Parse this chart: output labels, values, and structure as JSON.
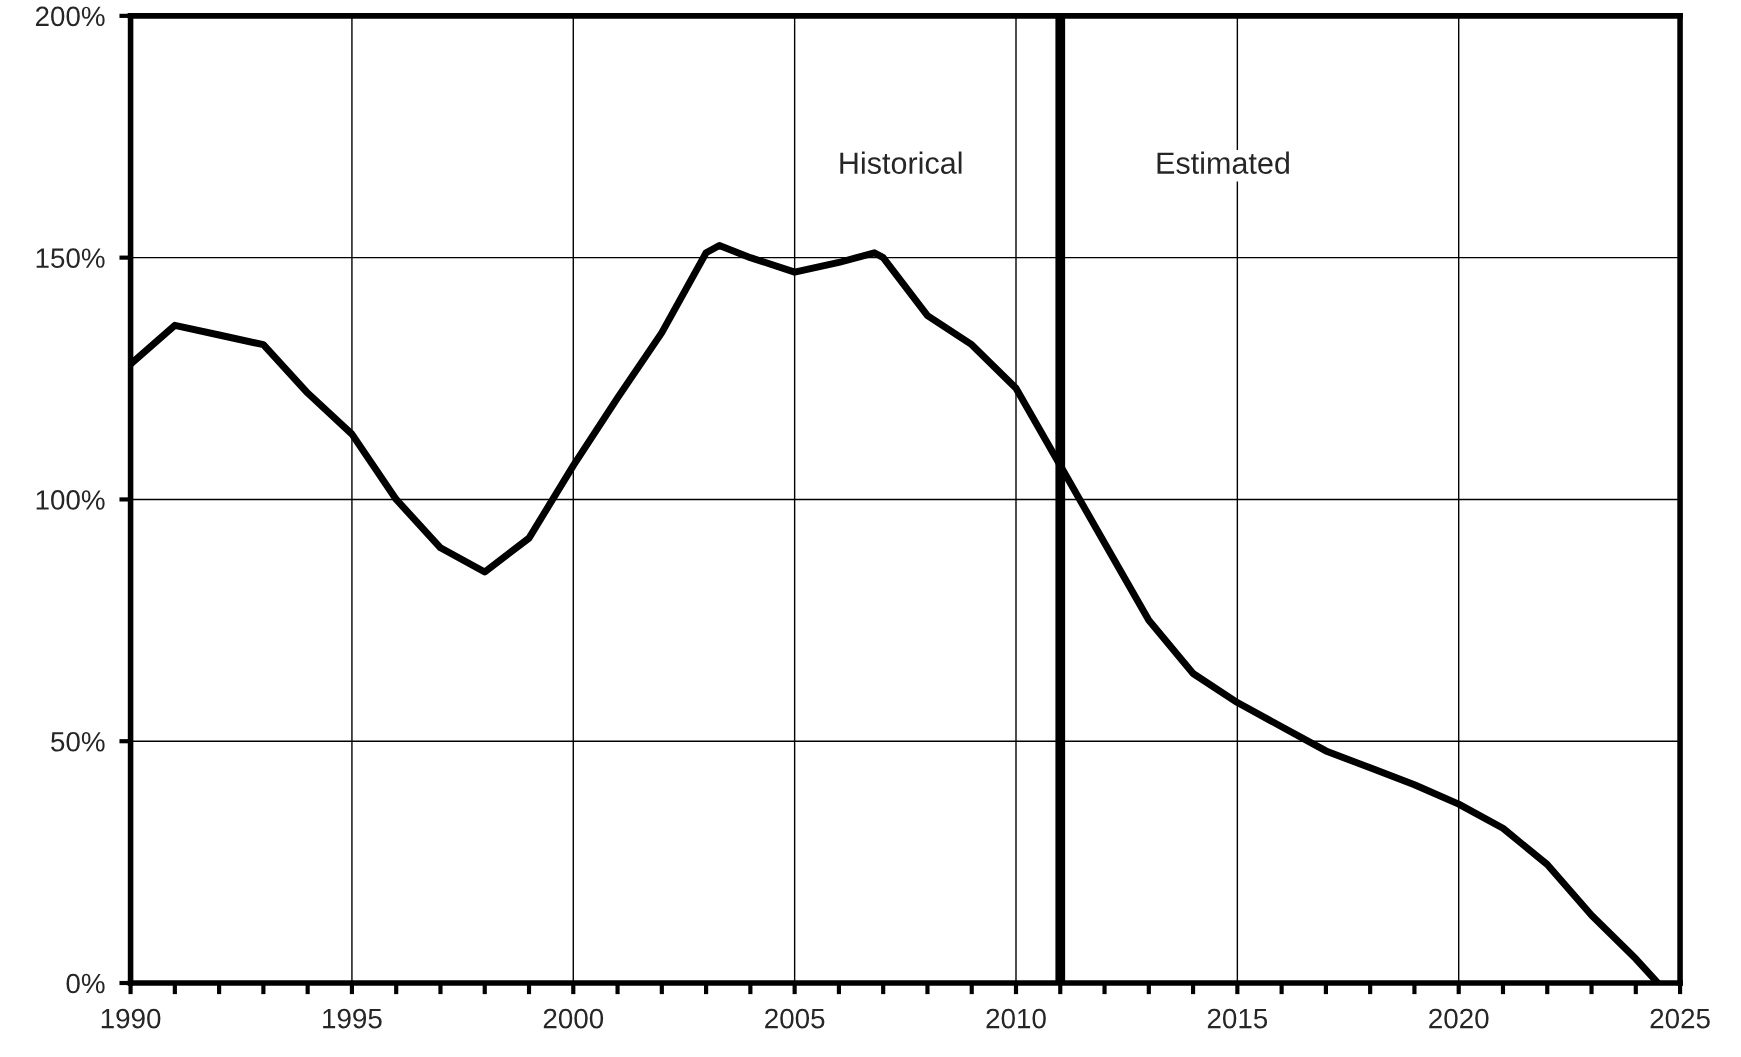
{
  "chart_data": {
    "type": "line",
    "x": [
      1990,
      1991,
      1992,
      1993,
      1994,
      1995,
      1996,
      1997,
      1998,
      1999,
      2000,
      2001,
      2002,
      2003,
      2003.3,
      2004,
      2005,
      2006,
      2006.8,
      2007,
      2008,
      2009,
      2010,
      2011,
      2012,
      2013,
      2014,
      2015,
      2016,
      2017,
      2018,
      2019,
      2020,
      2021,
      2022,
      2023,
      2024,
      2024.5
    ],
    "series": [
      {
        "color": "#000000",
        "values": [
          128,
          136,
          134,
          132,
          122,
          113.5,
          100,
          90,
          85,
          92,
          107,
          121,
          134.5,
          151,
          152.5,
          150,
          147,
          149,
          151,
          150,
          138,
          132,
          123,
          107,
          91,
          75,
          64,
          58,
          53,
          48,
          44.5,
          41,
          37,
          32,
          24.5,
          14,
          5,
          0
        ]
      }
    ],
    "xlim": [
      1990,
      2025
    ],
    "xticks": [
      1990,
      {
        "value": 1991,
        "label": null
      },
      {
        "value": 1992,
        "label": null
      },
      {
        "value": 1993,
        "label": null
      },
      {
        "value": 1994,
        "label": null
      },
      1995,
      {
        "value": 1996,
        "label": null
      },
      {
        "value": 1997,
        "label": null
      },
      {
        "value": 1998,
        "label": null
      },
      {
        "value": 1999,
        "label": null
      },
      2000,
      {
        "value": 2001,
        "label": null
      },
      {
        "value": 2002,
        "label": null
      },
      {
        "value": 2003,
        "label": null
      },
      {
        "value": 2004,
        "label": null
      },
      2005,
      {
        "value": 2006,
        "label": null
      },
      {
        "value": 2007,
        "label": null
      },
      {
        "value": 2008,
        "label": null
      },
      {
        "value": 2009,
        "label": null
      },
      2010,
      {
        "value": 2011,
        "label": null
      },
      {
        "value": 2012,
        "label": null
      },
      {
        "value": 2013,
        "label": null
      },
      {
        "value": 2014,
        "label": null
      },
      2015,
      {
        "value": 2016,
        "label": null
      },
      {
        "value": 2017,
        "label": null
      },
      {
        "value": 2018,
        "label": null
      },
      {
        "value": 2019,
        "label": null
      },
      2020,
      {
        "value": 2021,
        "label": null
      },
      {
        "value": 2022,
        "label": null
      },
      {
        "value": 2023,
        "label": null
      },
      {
        "value": 2024,
        "label": null
      },
      2025
    ],
    "ylim": [
      0,
      200
    ],
    "yticks": [
      {
        "value": 0,
        "label": "0%"
      },
      {
        "value": 50,
        "label": "50%"
      },
      {
        "value": 100,
        "label": "100%"
      },
      {
        "value": 150,
        "label": "150%"
      },
      {
        "value": 200,
        "label": "200%"
      }
    ],
    "grid": true,
    "marker": "none",
    "line_style": "solid",
    "legend": false,
    "ref_lines": [
      {
        "axis": "x",
        "value": 2011,
        "color": "#000000"
      }
    ],
    "annotations": [
      "Historical",
      "Estimated"
    ]
  }
}
